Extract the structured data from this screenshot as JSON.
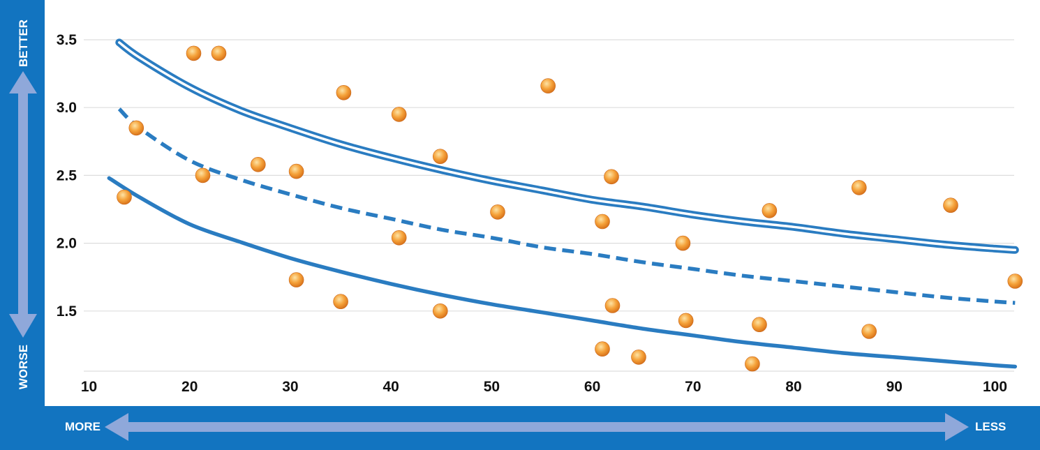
{
  "colors": {
    "frame": "#1274c0",
    "arrow": "#8fa8da",
    "curve": "#2a7cc1",
    "gridline": "#dddddd",
    "point_light": "#fde3a5",
    "point_mid": "#f5a23a",
    "point_dark": "#d9741b"
  },
  "labels": {
    "y_top": "BETTER",
    "y_bottom": "WORSE",
    "x_left": "MORE",
    "x_right": "LESS"
  },
  "chart_data": {
    "type": "scatter",
    "title": "",
    "xlabel": "",
    "ylabel": "",
    "xlim": [
      10,
      102
    ],
    "ylim": [
      1.0,
      3.5
    ],
    "x_ticks": [
      10,
      20,
      30,
      40,
      50,
      60,
      70,
      80,
      90,
      100
    ],
    "x_tick_labels": [
      "10",
      "20",
      "30",
      "40",
      "50",
      "60",
      "70",
      "80",
      "90",
      "100"
    ],
    "y_ticks": [
      1.5,
      2.0,
      2.5,
      3.0,
      3.5
    ],
    "y_tick_labels": [
      "1.5",
      "2.0",
      "2.5",
      "3.0",
      "3.5"
    ],
    "grid": true,
    "points": [
      {
        "x": 13.5,
        "y": 2.34
      },
      {
        "x": 14.7,
        "y": 2.85
      },
      {
        "x": 20.4,
        "y": 3.4
      },
      {
        "x": 21.3,
        "y": 2.5
      },
      {
        "x": 22.9,
        "y": 3.4
      },
      {
        "x": 26.8,
        "y": 2.58
      },
      {
        "x": 30.6,
        "y": 2.53
      },
      {
        "x": 30.6,
        "y": 1.73
      },
      {
        "x": 35.0,
        "y": 1.57
      },
      {
        "x": 35.3,
        "y": 3.11
      },
      {
        "x": 40.8,
        "y": 2.95
      },
      {
        "x": 40.8,
        "y": 2.04
      },
      {
        "x": 44.9,
        "y": 2.64
      },
      {
        "x": 44.9,
        "y": 1.5
      },
      {
        "x": 50.6,
        "y": 2.23
      },
      {
        "x": 55.6,
        "y": 3.16
      },
      {
        "x": 61.0,
        "y": 2.16
      },
      {
        "x": 61.0,
        "y": 1.22
      },
      {
        "x": 61.9,
        "y": 2.49
      },
      {
        "x": 62.0,
        "y": 1.54
      },
      {
        "x": 64.6,
        "y": 1.16
      },
      {
        "x": 69.0,
        "y": 2.0
      },
      {
        "x": 69.3,
        "y": 1.43
      },
      {
        "x": 75.9,
        "y": 1.11
      },
      {
        "x": 76.6,
        "y": 1.4
      },
      {
        "x": 77.6,
        "y": 2.24
      },
      {
        "x": 86.5,
        "y": 2.41
      },
      {
        "x": 87.5,
        "y": 1.35
      },
      {
        "x": 95.6,
        "y": 2.28
      },
      {
        "x": 102.0,
        "y": 1.72
      }
    ],
    "series": [
      {
        "name": "upper",
        "style": "double",
        "x": [
          13,
          15,
          20,
          25,
          30,
          35,
          40,
          45,
          50,
          55,
          60,
          65,
          70,
          75,
          80,
          85,
          90,
          95,
          100,
          102
        ],
        "y": [
          3.48,
          3.37,
          3.15,
          2.98,
          2.85,
          2.73,
          2.63,
          2.54,
          2.46,
          2.39,
          2.32,
          2.27,
          2.21,
          2.16,
          2.12,
          2.07,
          2.03,
          1.99,
          1.96,
          1.95
        ]
      },
      {
        "name": "middle",
        "style": "dashed",
        "x": [
          13,
          15,
          20,
          25,
          30,
          35,
          40,
          45,
          50,
          55,
          60,
          65,
          70,
          75,
          80,
          85,
          90,
          95,
          100,
          102
        ],
        "y": [
          2.99,
          2.85,
          2.61,
          2.47,
          2.36,
          2.26,
          2.18,
          2.1,
          2.04,
          1.97,
          1.92,
          1.86,
          1.81,
          1.76,
          1.72,
          1.68,
          1.64,
          1.6,
          1.57,
          1.56
        ]
      },
      {
        "name": "lower",
        "style": "solid",
        "x": [
          12,
          15,
          20,
          25,
          30,
          35,
          40,
          45,
          50,
          55,
          60,
          65,
          70,
          75,
          80,
          85,
          90,
          95,
          100,
          102
        ],
        "y": [
          2.48,
          2.34,
          2.14,
          2.01,
          1.89,
          1.79,
          1.7,
          1.62,
          1.55,
          1.49,
          1.43,
          1.37,
          1.32,
          1.27,
          1.23,
          1.19,
          1.16,
          1.13,
          1.1,
          1.09
        ]
      }
    ]
  }
}
